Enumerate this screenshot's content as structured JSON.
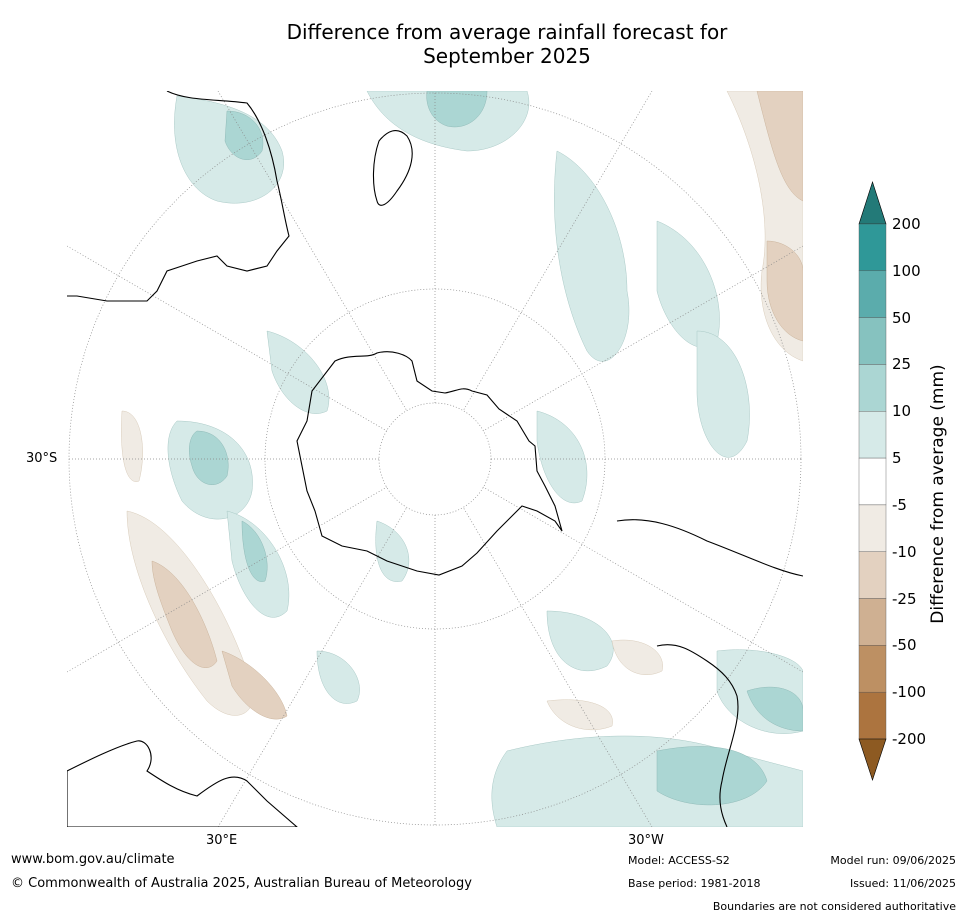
{
  "title": {
    "line1": "Difference from average rainfall forecast for",
    "line2": "September 2025"
  },
  "map": {
    "projection": "south-polar-stereographic",
    "graticule_labels": {
      "lat": "30°S",
      "lon_left": "30°E",
      "lon_right": "30°W"
    },
    "colors": {
      "land_outline": "#000000",
      "graticule": "#888888",
      "wet_light": "#d6eae8",
      "wet_mid": "#abd6d3",
      "wet_dark": "#86c2bf",
      "dry_light": "#f0ebe4",
      "dry_mid": "#e3d1c0",
      "dry_dark": "#cfb092"
    }
  },
  "legend": {
    "label": "Difference from average (mm)",
    "ticks": [
      "200",
      "100",
      "50",
      "25",
      "10",
      "5",
      "-5",
      "-10",
      "-25",
      "-50",
      "-100",
      "-200"
    ],
    "colors": [
      "#2f9898",
      "#5bacac",
      "#86c2bf",
      "#abd6d3",
      "#d6eae8",
      "#ffffff",
      "#f0ebe4",
      "#e3d1c0",
      "#cfb092",
      "#bd9063",
      "#ac743f"
    ],
    "cap_top_color": "#237a78",
    "cap_bottom_color": "#8d5a22"
  },
  "footer": {
    "url": "www.bom.gov.au/climate",
    "copyright": "© Commonwealth of Australia 2025, Australian Bureau of Meteorology",
    "model": "Model: ACCESS-S2",
    "base_period": "Base period: 1981-2018",
    "model_run": "Model run: 09/06/2025",
    "issued": "Issued: 11/06/2025",
    "boundaries": "Boundaries are not considered authoritative"
  }
}
